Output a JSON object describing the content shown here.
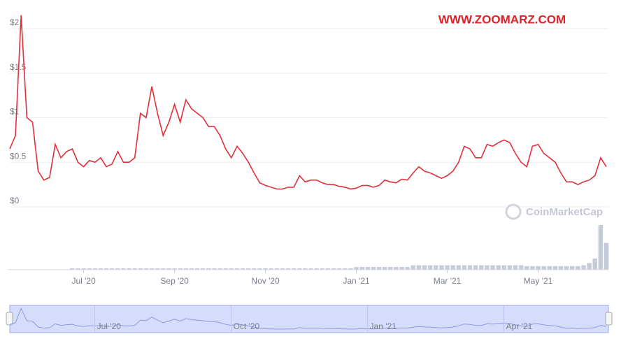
{
  "chart_data": {
    "type": "line",
    "watermark": "WWW.ZOOMARZ.COM",
    "brand": "CoinMarketCap",
    "categories": [
      null,
      null,
      null,
      null,
      null,
      null,
      null,
      null,
      null,
      null,
      null,
      null,
      null,
      "Jul '20",
      null,
      null,
      null,
      null,
      null,
      null,
      null,
      null,
      null,
      null,
      null,
      null,
      null,
      null,
      null,
      "Sep '20",
      null,
      null,
      null,
      null,
      null,
      null,
      null,
      null,
      null,
      null,
      null,
      null,
      null,
      null,
      null,
      "Nov '20",
      null,
      null,
      null,
      null,
      null,
      null,
      null,
      null,
      null,
      null,
      null,
      null,
      null,
      null,
      null,
      "Jan '21",
      null,
      null,
      null,
      null,
      null,
      null,
      null,
      null,
      null,
      null,
      null,
      null,
      null,
      null,
      null,
      "Mar '21",
      null,
      null,
      null,
      null,
      null,
      null,
      null,
      null,
      null,
      null,
      null,
      null,
      null,
      null,
      null,
      "May '21",
      null,
      null,
      null,
      null,
      null,
      null,
      null,
      null,
      null,
      null,
      null,
      null
    ],
    "series": [
      {
        "color": "#e0303a",
        "values": [
          0.65,
          0.8,
          2.15,
          1.0,
          0.95,
          0.4,
          0.3,
          0.33,
          0.7,
          0.55,
          0.62,
          0.65,
          0.5,
          0.45,
          0.52,
          0.5,
          0.55,
          0.45,
          0.48,
          0.62,
          0.5,
          0.5,
          0.55,
          1.05,
          1.0,
          1.35,
          1.05,
          0.8,
          0.95,
          1.15,
          0.95,
          1.2,
          1.1,
          1.05,
          1.0,
          0.9,
          0.9,
          0.8,
          0.65,
          0.55,
          0.68,
          0.6,
          0.5,
          0.38,
          0.27,
          0.24,
          0.22,
          0.2,
          0.2,
          0.22,
          0.22,
          0.35,
          0.28,
          0.3,
          0.3,
          0.27,
          0.25,
          0.25,
          0.23,
          0.22,
          0.2,
          0.21,
          0.24,
          0.24,
          0.22,
          0.24,
          0.3,
          0.28,
          0.27,
          0.31,
          0.3,
          0.38,
          0.45,
          0.4,
          0.38,
          0.35,
          0.32,
          0.35,
          0.4,
          0.5,
          0.68,
          0.65,
          0.55,
          0.55,
          0.7,
          0.68,
          0.72,
          0.75,
          0.72,
          0.6,
          0.5,
          0.45,
          0.68,
          0.7,
          0.6,
          0.55,
          0.5,
          0.38,
          0.28,
          0.28,
          0.25,
          0.28,
          0.3,
          0.35,
          0.55,
          0.45
        ]
      }
    ],
    "volume": {
      "color": "#c5cbd8",
      "values": [
        1,
        1,
        1,
        1,
        1,
        1,
        1,
        1,
        1,
        1,
        1,
        3,
        3,
        3,
        3,
        3,
        3,
        3,
        3,
        3,
        3,
        3,
        3,
        3,
        3,
        3,
        3,
        3,
        3,
        3,
        3,
        3,
        3,
        3,
        3,
        3,
        3,
        3,
        3,
        3,
        3,
        3,
        3,
        3,
        3,
        3,
        3,
        3,
        3,
        3,
        3,
        3,
        3,
        3,
        3,
        3,
        3,
        3,
        3,
        3,
        3,
        6,
        6,
        6,
        6,
        6,
        6,
        6,
        6,
        6,
        6,
        10,
        10,
        10,
        10,
        10,
        10,
        10,
        10,
        10,
        10,
        10,
        10,
        10,
        10,
        10,
        10,
        10,
        10,
        10,
        10,
        8,
        8,
        8,
        8,
        8,
        8,
        8,
        8,
        8,
        8,
        10,
        15,
        25,
        100,
        60
      ],
      "ylim": [
        0,
        100
      ]
    },
    "navigator": {
      "categories": [
        null,
        null,
        null,
        null,
        null,
        null,
        null,
        null,
        null,
        null,
        null,
        null,
        null,
        "Jul '20",
        null,
        null,
        null,
        null,
        null,
        null,
        null,
        null,
        null,
        null,
        null,
        null,
        null,
        null,
        null,
        null,
        null,
        null,
        null,
        null,
        null,
        null,
        null,
        "Oct '20",
        null,
        null,
        null,
        null,
        null,
        null,
        null,
        null,
        null,
        null,
        null,
        null,
        null,
        null,
        null,
        null,
        null,
        null,
        null,
        null,
        null,
        null,
        null,
        "Jan '21",
        null,
        null,
        null,
        null,
        null,
        null,
        null,
        null,
        null,
        null,
        null,
        null,
        null,
        null,
        null,
        null,
        null,
        null,
        null,
        null,
        null,
        null,
        null,
        "Apr '21",
        null,
        null,
        null,
        null,
        null,
        null,
        null,
        null,
        null,
        null,
        null,
        null,
        null,
        null,
        null,
        null,
        null,
        null,
        null,
        null
      ]
    },
    "ylim": [
      0,
      2.25
    ],
    "yticks": [
      {
        "value": 0,
        "label": "$0"
      },
      {
        "value": 0.5,
        "label": "$0.5"
      },
      {
        "value": 1,
        "label": "$1"
      },
      {
        "value": 1.5,
        "label": "$1.5"
      },
      {
        "value": 2,
        "label": "$2"
      }
    ],
    "grid": true
  }
}
